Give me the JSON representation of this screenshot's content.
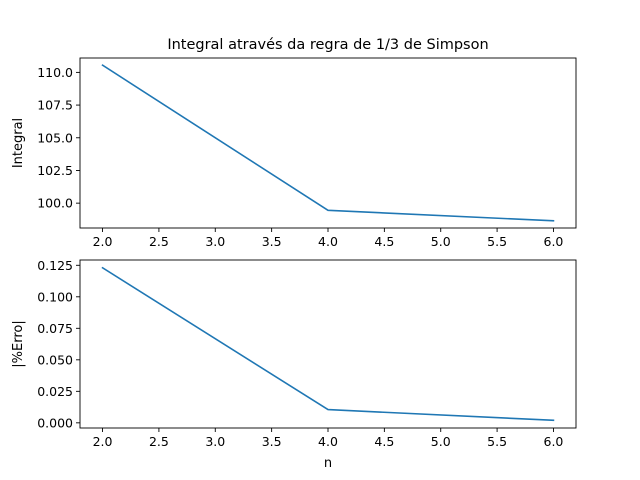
{
  "figure": {
    "title": "Integral através da regra de 1/3 de Simpson"
  },
  "chart_data": [
    {
      "type": "line",
      "title": "Integral através da regra de 1/3 de Simpson",
      "xlabel": "n",
      "ylabel": "Integral",
      "x": [
        2.0,
        4.0,
        6.0
      ],
      "series": [
        {
          "values": [
            110.55,
            99.45,
            98.65
          ],
          "color": "#1f77b4"
        }
      ],
      "xlim": [
        1.8,
        6.2
      ],
      "ylim": [
        98.1,
        111.1
      ],
      "xticks": [
        2.0,
        2.5,
        3.0,
        3.5,
        4.0,
        4.5,
        5.0,
        5.5,
        6.0
      ],
      "xtick_labels": [
        "2.0",
        "2.5",
        "3.0",
        "3.5",
        "4.0",
        "4.5",
        "5.0",
        "5.5",
        "6.0"
      ],
      "yticks": [
        100.0,
        102.5,
        105.0,
        107.5,
        110.0
      ],
      "ytick_labels": [
        "100.0",
        "102.5",
        "105.0",
        "107.5",
        "110.0"
      ],
      "grid": false,
      "legend": "none"
    },
    {
      "type": "line",
      "title": "",
      "xlabel": "n",
      "ylabel": "|%Erro|",
      "x": [
        2.0,
        4.0,
        6.0
      ],
      "series": [
        {
          "values": [
            0.123,
            0.0105,
            0.002
          ],
          "color": "#1f77b4"
        }
      ],
      "xlim": [
        1.8,
        6.2
      ],
      "ylim": [
        -0.0041,
        0.1292
      ],
      "xticks": [
        2.0,
        2.5,
        3.0,
        3.5,
        4.0,
        4.5,
        5.0,
        5.5,
        6.0
      ],
      "xtick_labels": [
        "2.0",
        "2.5",
        "3.0",
        "3.5",
        "4.0",
        "4.5",
        "5.0",
        "5.5",
        "6.0"
      ],
      "yticks": [
        0.0,
        0.025,
        0.05,
        0.075,
        0.1,
        0.125
      ],
      "ytick_labels": [
        "0.000",
        "0.025",
        "0.050",
        "0.075",
        "0.100",
        "0.125"
      ],
      "grid": false,
      "legend": "none"
    }
  ]
}
